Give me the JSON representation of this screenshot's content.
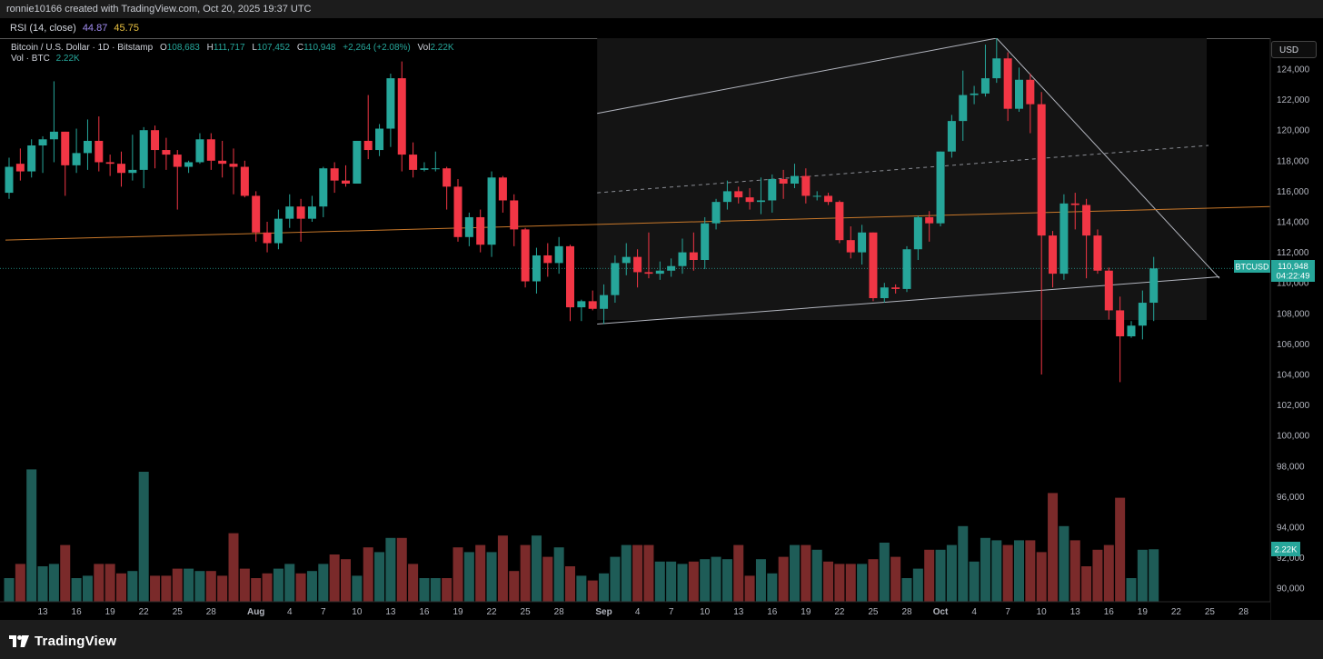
{
  "header": {
    "attribution": "ronnie10166 created with TradingView.com, Oct 20, 2025 19:37 UTC"
  },
  "rsi": {
    "label": "RSI (14, close)",
    "value1": "44.87",
    "value2": "45.75"
  },
  "legend": {
    "symbol": "Bitcoin / U.S. Dollar · 1D · Bitstamp",
    "open_key": "O",
    "open": "108,683",
    "high_key": "H",
    "high": "111,717",
    "low_key": "L",
    "low": "107,452",
    "close_key": "C",
    "close": "110,948",
    "change": "+2,264 (+2.08%)",
    "vol_key": "Vol",
    "vol": "2.22K",
    "vol_line_label": "Vol · BTC",
    "vol_line_value": "2.22K"
  },
  "price_axis": {
    "currency_button": "USD",
    "ticker_badge": "BTCUSD",
    "last_price": "110,948",
    "countdown": "04:22:49",
    "volume_badge": "2.22K"
  },
  "footer": {
    "brand": "TradingView"
  },
  "colors": {
    "up": "#26a69a",
    "down": "#f23645",
    "vol_up": "#1e5c57",
    "vol_down": "#7a2a2a",
    "channel_line": "#b2b5be",
    "orange_line": "#c8782a",
    "dashed_mid": "#8a8d94"
  },
  "chart_data": {
    "type": "candlestick",
    "x_axis_labels": [
      "13",
      "16",
      "19",
      "22",
      "25",
      "28",
      "Aug",
      "4",
      "7",
      "10",
      "13",
      "16",
      "19",
      "22",
      "25",
      "28",
      "Sep",
      "4",
      "7",
      "10",
      "13",
      "16",
      "19",
      "22",
      "25",
      "28",
      "Oct",
      "4",
      "7",
      "10",
      "13",
      "16",
      "19",
      "22",
      "25",
      "28"
    ],
    "y_axis": {
      "ticks": [
        90000,
        92000,
        94000,
        96000,
        98000,
        100000,
        102000,
        104000,
        106000,
        108000,
        110000,
        112000,
        114000,
        116000,
        118000,
        120000,
        122000,
        124000
      ],
      "tick_labels": [
        "90,000",
        "92,000",
        "94,000",
        "96,000",
        "98,000",
        "100,000",
        "102,000",
        "104,000",
        "106,000",
        "108,000",
        "110,000",
        "112,000",
        "114,000",
        "116,000",
        "118,000",
        "120,000",
        "122,000",
        "124,000"
      ],
      "range": [
        89000,
        125200
      ]
    },
    "candles": [
      {
        "d": "Jul 10",
        "o": 115900,
        "h": 118200,
        "l": 115500,
        "c": 117600
      },
      {
        "d": "Jul 11",
        "o": 117800,
        "h": 118800,
        "l": 116700,
        "c": 117300
      },
      {
        "d": "Jul 12",
        "o": 117300,
        "h": 119400,
        "l": 116900,
        "c": 119000
      },
      {
        "d": "Jul 13",
        "o": 119000,
        "h": 119600,
        "l": 117200,
        "c": 119400
      },
      {
        "d": "Jul 14",
        "o": 119400,
        "h": 123200,
        "l": 117900,
        "c": 119900
      },
      {
        "d": "Jul 15",
        "o": 119900,
        "h": 119900,
        "l": 115700,
        "c": 117700
      },
      {
        "d": "Jul 16",
        "o": 117700,
        "h": 120100,
        "l": 117200,
        "c": 118500
      },
      {
        "d": "Jul 17",
        "o": 118500,
        "h": 120700,
        "l": 117400,
        "c": 119300
      },
      {
        "d": "Jul 18",
        "o": 119300,
        "h": 120900,
        "l": 117300,
        "c": 117900
      },
      {
        "d": "Jul 19",
        "o": 117900,
        "h": 118400,
        "l": 117000,
        "c": 117800
      },
      {
        "d": "Jul 20",
        "o": 117800,
        "h": 118600,
        "l": 116300,
        "c": 117200
      },
      {
        "d": "Jul 21",
        "o": 117200,
        "h": 119700,
        "l": 116700,
        "c": 117400
      },
      {
        "d": "Jul 22",
        "o": 117400,
        "h": 120200,
        "l": 116200,
        "c": 120000
      },
      {
        "d": "Jul 23",
        "o": 120000,
        "h": 120300,
        "l": 117500,
        "c": 118700
      },
      {
        "d": "Jul 24",
        "o": 118700,
        "h": 119500,
        "l": 117400,
        "c": 118400
      },
      {
        "d": "Jul 25",
        "o": 118400,
        "h": 118700,
        "l": 114800,
        "c": 117600
      },
      {
        "d": "Jul 26",
        "o": 117600,
        "h": 118000,
        "l": 117200,
        "c": 117900
      },
      {
        "d": "Jul 27",
        "o": 117900,
        "h": 119800,
        "l": 117800,
        "c": 119400
      },
      {
        "d": "Jul 28",
        "o": 119400,
        "h": 119800,
        "l": 117400,
        "c": 118000
      },
      {
        "d": "Jul 29",
        "o": 118000,
        "h": 119300,
        "l": 116900,
        "c": 117800
      },
      {
        "d": "Jul 30",
        "o": 117800,
        "h": 118800,
        "l": 115800,
        "c": 117600
      },
      {
        "d": "Jul 31",
        "o": 117600,
        "h": 118000,
        "l": 115600,
        "c": 115700
      },
      {
        "d": "Aug 1",
        "o": 115700,
        "h": 116000,
        "l": 112700,
        "c": 113300
      },
      {
        "d": "Aug 2",
        "o": 113300,
        "h": 114000,
        "l": 112000,
        "c": 112600
      },
      {
        "d": "Aug 3",
        "o": 112600,
        "h": 114800,
        "l": 112200,
        "c": 114200
      },
      {
        "d": "Aug 4",
        "o": 114200,
        "h": 115800,
        "l": 113600,
        "c": 115000
      },
      {
        "d": "Aug 5",
        "o": 115000,
        "h": 115500,
        "l": 112700,
        "c": 114200
      },
      {
        "d": "Aug 6",
        "o": 114200,
        "h": 115700,
        "l": 114000,
        "c": 115000
      },
      {
        "d": "Aug 7",
        "o": 115000,
        "h": 117600,
        "l": 114300,
        "c": 117500
      },
      {
        "d": "Aug 8",
        "o": 117500,
        "h": 117900,
        "l": 115900,
        "c": 116700
      },
      {
        "d": "Aug 9",
        "o": 116700,
        "h": 117700,
        "l": 116300,
        "c": 116500
      },
      {
        "d": "Aug 10",
        "o": 116500,
        "h": 119300,
        "l": 116500,
        "c": 119300
      },
      {
        "d": "Aug 11",
        "o": 119300,
        "h": 122300,
        "l": 118100,
        "c": 118700
      },
      {
        "d": "Aug 12",
        "o": 118700,
        "h": 120400,
        "l": 118300,
        "c": 120100
      },
      {
        "d": "Aug 13",
        "o": 120100,
        "h": 123700,
        "l": 118900,
        "c": 123400
      },
      {
        "d": "Aug 14",
        "o": 123400,
        "h": 124500,
        "l": 117300,
        "c": 118400
      },
      {
        "d": "Aug 15",
        "o": 118400,
        "h": 119200,
        "l": 116900,
        "c": 117400
      },
      {
        "d": "Aug 16",
        "o": 117400,
        "h": 117900,
        "l": 117300,
        "c": 117500
      },
      {
        "d": "Aug 17",
        "o": 117500,
        "h": 118600,
        "l": 117300,
        "c": 117500
      },
      {
        "d": "Aug 18",
        "o": 117500,
        "h": 117600,
        "l": 114800,
        "c": 116300
      },
      {
        "d": "Aug 19",
        "o": 116300,
        "h": 116800,
        "l": 112700,
        "c": 113000
      },
      {
        "d": "Aug 20",
        "o": 113000,
        "h": 114600,
        "l": 112400,
        "c": 114300
      },
      {
        "d": "Aug 21",
        "o": 114300,
        "h": 114800,
        "l": 112000,
        "c": 112500
      },
      {
        "d": "Aug 22",
        "o": 112500,
        "h": 117300,
        "l": 111700,
        "c": 116900
      },
      {
        "d": "Aug 23",
        "o": 116900,
        "h": 117000,
        "l": 114600,
        "c": 115400
      },
      {
        "d": "Aug 24",
        "o": 115400,
        "h": 115800,
        "l": 112400,
        "c": 113500
      },
      {
        "d": "Aug 25",
        "o": 113500,
        "h": 113600,
        "l": 109700,
        "c": 110100
      },
      {
        "d": "Aug 26",
        "o": 110100,
        "h": 112300,
        "l": 109300,
        "c": 111800
      },
      {
        "d": "Aug 27",
        "o": 111800,
        "h": 112600,
        "l": 110400,
        "c": 111300
      },
      {
        "d": "Aug 28",
        "o": 111300,
        "h": 113000,
        "l": 110600,
        "c": 112400
      },
      {
        "d": "Aug 29",
        "o": 112400,
        "h": 112500,
        "l": 107500,
        "c": 108400
      },
      {
        "d": "Aug 30",
        "o": 108400,
        "h": 108900,
        "l": 107500,
        "c": 108800
      },
      {
        "d": "Aug 31",
        "o": 108800,
        "h": 109500,
        "l": 108200,
        "c": 108300
      },
      {
        "d": "Sep 1",
        "o": 108300,
        "h": 109900,
        "l": 107300,
        "c": 109200
      },
      {
        "d": "Sep 2",
        "o": 109200,
        "h": 111800,
        "l": 108700,
        "c": 111300
      },
      {
        "d": "Sep 3",
        "o": 111300,
        "h": 112600,
        "l": 110500,
        "c": 111700
      },
      {
        "d": "Sep 4",
        "o": 111700,
        "h": 112200,
        "l": 109700,
        "c": 110700
      },
      {
        "d": "Sep 5",
        "o": 110700,
        "h": 113300,
        "l": 110300,
        "c": 110600
      },
      {
        "d": "Sep 6",
        "o": 110600,
        "h": 111400,
        "l": 110200,
        "c": 110800
      },
      {
        "d": "Sep 7",
        "o": 110800,
        "h": 111600,
        "l": 110400,
        "c": 111100
      },
      {
        "d": "Sep 8",
        "o": 111100,
        "h": 112900,
        "l": 110600,
        "c": 112000
      },
      {
        "d": "Sep 9",
        "o": 112000,
        "h": 113300,
        "l": 110800,
        "c": 111500
      },
      {
        "d": "Sep 10",
        "o": 111500,
        "h": 114300,
        "l": 110900,
        "c": 113900
      },
      {
        "d": "Sep 11",
        "o": 113900,
        "h": 115500,
        "l": 113500,
        "c": 115300
      },
      {
        "d": "Sep 12",
        "o": 115300,
        "h": 116700,
        "l": 114800,
        "c": 116000
      },
      {
        "d": "Sep 13",
        "o": 116000,
        "h": 116300,
        "l": 115200,
        "c": 115600
      },
      {
        "d": "Sep 14",
        "o": 115600,
        "h": 116200,
        "l": 114800,
        "c": 115300
      },
      {
        "d": "Sep 15",
        "o": 115300,
        "h": 116900,
        "l": 114500,
        "c": 115400
      },
      {
        "d": "Sep 16",
        "o": 115400,
        "h": 117100,
        "l": 114600,
        "c": 116800
      },
      {
        "d": "Sep 17",
        "o": 116800,
        "h": 117400,
        "l": 115500,
        "c": 116500
      },
      {
        "d": "Sep 18",
        "o": 116500,
        "h": 117800,
        "l": 116200,
        "c": 117000
      },
      {
        "d": "Sep 19",
        "o": 117000,
        "h": 117500,
        "l": 115200,
        "c": 115700
      },
      {
        "d": "Sep 20",
        "o": 115700,
        "h": 116000,
        "l": 115400,
        "c": 115700
      },
      {
        "d": "Sep 21",
        "o": 115700,
        "h": 115900,
        "l": 115100,
        "c": 115300
      },
      {
        "d": "Sep 22",
        "o": 115300,
        "h": 115400,
        "l": 112600,
        "c": 112800
      },
      {
        "d": "Sep 23",
        "o": 112800,
        "h": 113700,
        "l": 111600,
        "c": 112000
      },
      {
        "d": "Sep 24",
        "o": 112000,
        "h": 113800,
        "l": 111200,
        "c": 113300
      },
      {
        "d": "Sep 25",
        "o": 113300,
        "h": 113300,
        "l": 108800,
        "c": 109000
      },
      {
        "d": "Sep 26",
        "o": 109000,
        "h": 110000,
        "l": 108700,
        "c": 109700
      },
      {
        "d": "Sep 27",
        "o": 109700,
        "h": 109900,
        "l": 109300,
        "c": 109600
      },
      {
        "d": "Sep 28",
        "o": 109600,
        "h": 112400,
        "l": 109400,
        "c": 112200
      },
      {
        "d": "Sep 29",
        "o": 112200,
        "h": 114400,
        "l": 111500,
        "c": 114300
      },
      {
        "d": "Sep 30",
        "o": 114300,
        "h": 114700,
        "l": 112700,
        "c": 113900
      },
      {
        "d": "Oct 1",
        "o": 113900,
        "h": 118600,
        "l": 113700,
        "c": 118600
      },
      {
        "d": "Oct 2",
        "o": 118600,
        "h": 121000,
        "l": 118200,
        "c": 120600
      },
      {
        "d": "Oct 3",
        "o": 120600,
        "h": 123900,
        "l": 119300,
        "c": 122300
      },
      {
        "d": "Oct 4",
        "o": 122300,
        "h": 122900,
        "l": 121700,
        "c": 122400
      },
      {
        "d": "Oct 5",
        "o": 122400,
        "h": 125600,
        "l": 122200,
        "c": 123400
      },
      {
        "d": "Oct 6",
        "o": 123400,
        "h": 126200,
        "l": 123100,
        "c": 124700
      },
      {
        "d": "Oct 7",
        "o": 124700,
        "h": 125100,
        "l": 120600,
        "c": 121400
      },
      {
        "d": "Oct 8",
        "o": 121400,
        "h": 124100,
        "l": 121200,
        "c": 123300
      },
      {
        "d": "Oct 9",
        "o": 123300,
        "h": 123700,
        "l": 119800,
        "c": 121700
      },
      {
        "d": "Oct 10",
        "o": 121700,
        "h": 122500,
        "l": 104000,
        "c": 113100
      },
      {
        "d": "Oct 11",
        "o": 113100,
        "h": 113400,
        "l": 109700,
        "c": 110600
      },
      {
        "d": "Oct 12",
        "o": 110600,
        "h": 115800,
        "l": 110200,
        "c": 115200
      },
      {
        "d": "Oct 13",
        "o": 115200,
        "h": 115900,
        "l": 113500,
        "c": 115100
      },
      {
        "d": "Oct 14",
        "o": 115100,
        "h": 115500,
        "l": 110300,
        "c": 113100
      },
      {
        "d": "Oct 15",
        "o": 113100,
        "h": 113500,
        "l": 110600,
        "c": 110800
      },
      {
        "d": "Oct 16",
        "o": 110800,
        "h": 111000,
        "l": 107600,
        "c": 108200
      },
      {
        "d": "Oct 17",
        "o": 108200,
        "h": 109100,
        "l": 103500,
        "c": 106500
      },
      {
        "d": "Oct 18",
        "o": 106500,
        "h": 107500,
        "l": 106400,
        "c": 107200
      },
      {
        "d": "Oct 19",
        "o": 107200,
        "h": 109500,
        "l": 106300,
        "c": 108700
      },
      {
        "d": "Oct 20",
        "o": 108700,
        "h": 111700,
        "l": 107500,
        "c": 110948
      }
    ],
    "volume": {
      "label": "Vol · BTC",
      "values": [
        1.0,
        1.6,
        5.6,
        1.5,
        1.6,
        2.4,
        1.0,
        1.1,
        1.6,
        1.6,
        1.2,
        1.3,
        5.5,
        1.1,
        1.1,
        1.4,
        1.4,
        1.3,
        1.3,
        1.1,
        2.9,
        1.4,
        1.0,
        1.2,
        1.4,
        1.6,
        1.2,
        1.3,
        1.6,
        2.0,
        1.8,
        1.1,
        2.3,
        2.1,
        2.7,
        2.7,
        1.6,
        1.0,
        1.0,
        1.0,
        2.3,
        2.1,
        2.4,
        2.1,
        2.8,
        1.3,
        2.4,
        2.8,
        1.9,
        2.3,
        1.5,
        1.1,
        0.9,
        1.2,
        1.9,
        2.4,
        2.4,
        2.4,
        1.7,
        1.7,
        1.6,
        1.7,
        1.8,
        1.9,
        1.8,
        2.4,
        1.1,
        1.8,
        1.2,
        1.9,
        2.4,
        2.4,
        2.2,
        1.7,
        1.6,
        1.6,
        1.6,
        1.8,
        2.5,
        1.9,
        1.0,
        1.4,
        2.2,
        2.2,
        2.4,
        3.2,
        1.7,
        2.7,
        2.6,
        2.4,
        2.6,
        2.6,
        2.1,
        4.6,
        3.2,
        2.6,
        1.5,
        2.2,
        2.4,
        4.4,
        1.0,
        2.2,
        2.22
      ]
    }
  }
}
